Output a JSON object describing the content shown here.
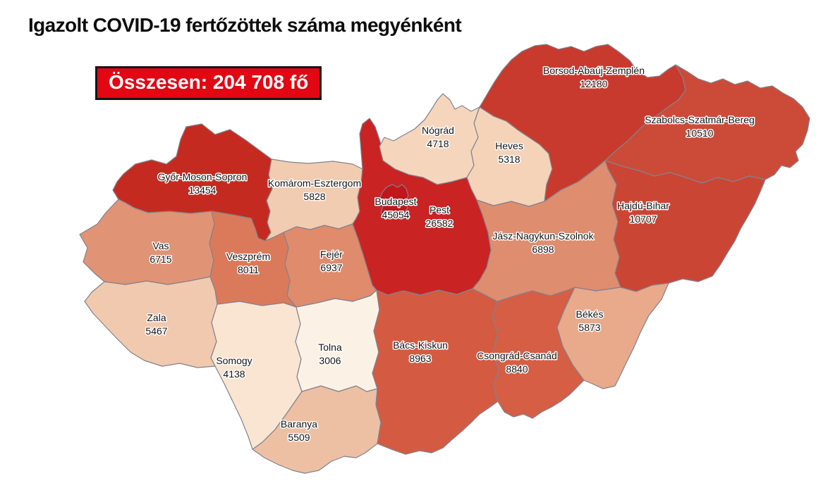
{
  "title": "Igazolt COVID-19 fertőzöttek száma megyénként",
  "total": {
    "label": "Összesen: 204 708 fő",
    "value": 204708,
    "bg_color": "#e30613",
    "text_color": "#ffffff",
    "border_color": "#151515"
  },
  "map": {
    "border_color": "#82828e",
    "background": "#ffffff",
    "counties": [
      {
        "id": "gyor-moson-sopron",
        "name": "Győr-Moson-Sopron",
        "value": 13454,
        "color": "#c52a21"
      },
      {
        "id": "komarom-esztergom",
        "name": "Komárom-Esztergom",
        "value": 5828,
        "color": "#f1ccb0"
      },
      {
        "id": "vas",
        "name": "Vas",
        "value": 6715,
        "color": "#e19376"
      },
      {
        "id": "veszprem",
        "name": "Veszprém",
        "value": 8011,
        "color": "#db7a5a"
      },
      {
        "id": "zala",
        "name": "Zala",
        "value": 5467,
        "color": "#f1c9ae"
      },
      {
        "id": "somogy",
        "name": "Somogy",
        "value": 4138,
        "color": "#f9e5d1"
      },
      {
        "id": "fejer",
        "name": "Fejér",
        "value": 6937,
        "color": "#df8b6c"
      },
      {
        "id": "tolna",
        "name": "Tolna",
        "value": 3006,
        "color": "#fcf1e5"
      },
      {
        "id": "baranya",
        "name": "Baranya",
        "value": 5509,
        "color": "#edc0a4"
      },
      {
        "id": "pest",
        "name": "Pest",
        "value": 26582,
        "color": "#ca2323"
      },
      {
        "id": "budapest",
        "name": "Budapest",
        "value": 45054,
        "color": "#c0161c"
      },
      {
        "id": "nograd",
        "name": "Nógrád",
        "value": 4718,
        "color": "#f5d6bd"
      },
      {
        "id": "heves",
        "name": "Heves",
        "value": 5318,
        "color": "#f4d3b9"
      },
      {
        "id": "borsod-abauj-zemplen",
        "name": "Borsod-Abaúj-Zemplén",
        "value": 12180,
        "color": "#c93a2e"
      },
      {
        "id": "szabolcs-szatmar-bereg",
        "name": "Szabolcs-Szatmár-Bereg",
        "value": 10510,
        "color": "#cc4b38"
      },
      {
        "id": "hajdu-bihar",
        "name": "Hajdú-Bihar",
        "value": 10707,
        "color": "#cb4534"
      },
      {
        "id": "jasz-nagykun-szolnok",
        "name": "Jász-Nagykun-Szolnok",
        "value": 6898,
        "color": "#df8d6f"
      },
      {
        "id": "bacs-kiskun",
        "name": "Bács-Kiskun",
        "value": 8963,
        "color": "#d45b41"
      },
      {
        "id": "csongrad-csanad",
        "name": "Csongrád-Csanád",
        "value": 8840,
        "color": "#d55e44"
      },
      {
        "id": "bekes",
        "name": "Békés",
        "value": 5873,
        "color": "#e9a98b"
      }
    ]
  },
  "chart_data": {
    "type": "heatmap",
    "subtype": "choropleth map of Hungary counties",
    "title": "Igazolt COVID-19 fertőzöttek száma megyénként",
    "total_label": "Összesen: 204 708 fő",
    "total_value": 204708,
    "unit": "fő",
    "legend_position": "none",
    "color_scale": "sequential reds: light cream (low) to dark red (high)",
    "categories": [
      "Budapest",
      "Pest",
      "Győr-Moson-Sopron",
      "Borsod-Abaúj-Zemplén",
      "Hajdú-Bihar",
      "Szabolcs-Szatmár-Bereg",
      "Bács-Kiskun",
      "Csongrád-Csanád",
      "Veszprém",
      "Fejér",
      "Jász-Nagykun-Szolnok",
      "Vas",
      "Békés",
      "Komárom-Esztergom",
      "Baranya",
      "Zala",
      "Heves",
      "Nógrád",
      "Somogy",
      "Tolna"
    ],
    "values": [
      45054,
      26582,
      13454,
      12180,
      10707,
      10510,
      8963,
      8840,
      8011,
      6937,
      6898,
      6715,
      5873,
      5828,
      5509,
      5467,
      5318,
      4718,
      4138,
      3006
    ]
  }
}
